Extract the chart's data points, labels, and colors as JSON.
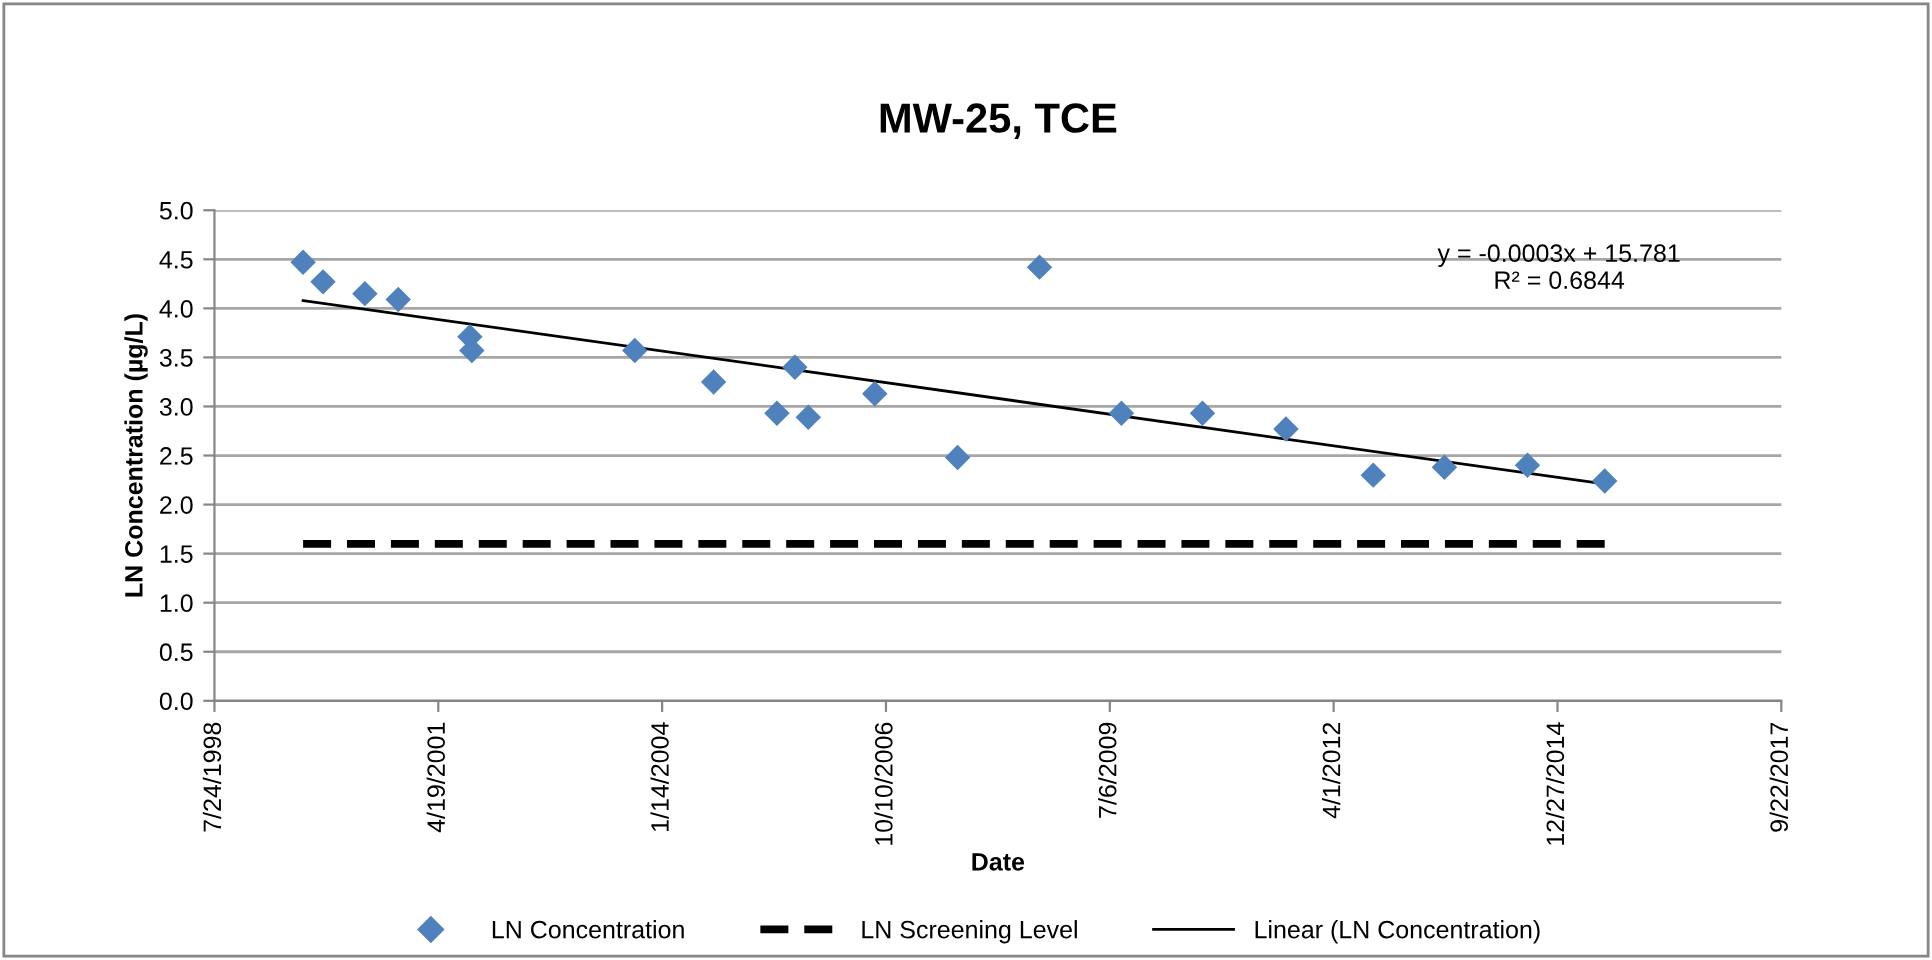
{
  "chart_data": {
    "type": "scatter",
    "title": "MW-25, TCE",
    "xlabel": "Date",
    "ylabel": "LN Concentration (µg/L)",
    "series": [
      {
        "name": "LN Concentration",
        "color": "#4f81bd",
        "marker": "diamond",
        "x": [
          "1999-08-24",
          "1999-11-21",
          "2000-05-26",
          "2000-10-22",
          "2001-09-07",
          "2001-09-16",
          "2003-09-14",
          "2004-08-31",
          "2005-06-10",
          "2005-08-29",
          "2005-10-28",
          "2006-08-21",
          "2007-08-26",
          "2008-08-26",
          "2009-08-27",
          "2010-08-24",
          "2011-09-01",
          "2012-09-25",
          "2013-08-09",
          "2014-08-15",
          "2015-07-26"
        ],
        "values": [
          4.47,
          4.27,
          4.15,
          4.09,
          3.71,
          3.57,
          3.57,
          3.25,
          2.93,
          3.4,
          2.89,
          3.13,
          2.48,
          4.42,
          2.93,
          2.93,
          2.77,
          2.3,
          2.38,
          2.4,
          2.24
        ]
      },
      {
        "name": "LN Screening Level",
        "type": "line",
        "color": "#000000",
        "line_style": "dashed",
        "x": [
          "1999-08-24",
          "2015-07-26"
        ],
        "values": [
          1.6,
          1.6
        ]
      },
      {
        "name": "Linear (LN Concentration)",
        "type": "line",
        "color": "#000000",
        "line_style": "solid",
        "x": [
          "1999-08-24",
          "2015-07-26"
        ],
        "values": [
          4.08,
          2.21
        ]
      }
    ],
    "annotations": [
      "y = -0.0003x + 15.781\nR² = 0.6844"
    ],
    "xlim": [
      "1998-07-24",
      "2017-09-22"
    ],
    "xticks": [
      {
        "value": "1998-07-24",
        "label": "7/24/1998"
      },
      {
        "value": "2001-04-19",
        "label": "4/19/2001"
      },
      {
        "value": "2004-01-14",
        "label": "1/14/2004"
      },
      {
        "value": "2006-10-10",
        "label": "10/10/2006"
      },
      {
        "value": "2009-07-06",
        "label": "7/6/2009"
      },
      {
        "value": "2012-04-01",
        "label": "4/1/2012"
      },
      {
        "value": "2014-12-27",
        "label": "12/27/2014"
      },
      {
        "value": "2017-09-22",
        "label": "9/22/2017"
      }
    ],
    "ylim": [
      0,
      5
    ],
    "yticks": [
      {
        "value": 0,
        "label": "0.0"
      },
      {
        "value": 0.5,
        "label": "0.5"
      },
      {
        "value": 1,
        "label": "1.0"
      },
      {
        "value": 1.5,
        "label": "1.5"
      },
      {
        "value": 2,
        "label": "2.0"
      },
      {
        "value": 2.5,
        "label": "2.5"
      },
      {
        "value": 3,
        "label": "3.0"
      },
      {
        "value": 3.5,
        "label": "3.5"
      },
      {
        "value": 4,
        "label": "4.0"
      },
      {
        "value": 4.5,
        "label": "4.5"
      },
      {
        "value": 5,
        "label": "5.0"
      }
    ],
    "grid": "y",
    "legend": "bottom"
  }
}
